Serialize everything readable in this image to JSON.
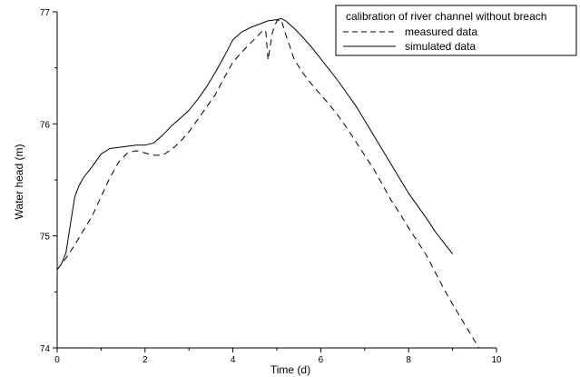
{
  "chart_data": {
    "type": "line",
    "title": "",
    "xlabel": "Time (d)",
    "ylabel": "Water head (m)",
    "xlim": [
      0,
      10
    ],
    "ylim": [
      74,
      77
    ],
    "xticks": [
      0,
      2,
      4,
      6,
      8,
      10
    ],
    "yticks": [
      74,
      75,
      76,
      77
    ],
    "grid": false,
    "legend": {
      "title": "calibration of river channel without breach",
      "placement": "top-right",
      "entries": [
        "measured data",
        "simulated data"
      ]
    },
    "series": [
      {
        "name": "measured data",
        "style": "dashed",
        "color": "#000000",
        "x": [
          0,
          0.1,
          0.2,
          0.4,
          0.6,
          0.8,
          1.0,
          1.2,
          1.4,
          1.6,
          1.8,
          2.0,
          2.2,
          2.4,
          2.6,
          2.8,
          3.0,
          3.2,
          3.4,
          3.6,
          3.8,
          4.0,
          4.2,
          4.4,
          4.5,
          4.6,
          4.7,
          4.75,
          4.8,
          4.9,
          5.0,
          5.1,
          5.2,
          5.4,
          5.6,
          5.8,
          6.0,
          6.2,
          6.4,
          6.6,
          6.8,
          7.0,
          7.2,
          7.4,
          7.6,
          7.8,
          8.0,
          8.2,
          8.4,
          8.6,
          8.8,
          9.0,
          9.2,
          9.4,
          9.6
        ],
        "y": [
          74.7,
          74.75,
          74.8,
          74.92,
          75.05,
          75.18,
          75.35,
          75.52,
          75.66,
          75.74,
          75.76,
          75.74,
          75.72,
          75.72,
          75.77,
          75.84,
          75.93,
          76.04,
          76.15,
          76.26,
          76.41,
          76.55,
          76.64,
          76.72,
          76.76,
          76.8,
          76.84,
          76.82,
          76.57,
          76.82,
          76.92,
          76.93,
          76.8,
          76.57,
          76.45,
          76.35,
          76.26,
          76.17,
          76.07,
          75.96,
          75.84,
          75.72,
          75.6,
          75.46,
          75.32,
          75.2,
          75.07,
          74.95,
          74.83,
          74.68,
          74.53,
          74.39,
          74.26,
          74.13,
          74.0
        ]
      },
      {
        "name": "simulated data",
        "style": "solid",
        "color": "#000000",
        "x": [
          0,
          0.1,
          0.2,
          0.3,
          0.4,
          0.5,
          0.6,
          0.8,
          1.0,
          1.2,
          1.4,
          1.6,
          1.8,
          2.0,
          2.2,
          2.4,
          2.6,
          2.8,
          3.0,
          3.2,
          3.4,
          3.6,
          3.8,
          4.0,
          4.2,
          4.4,
          4.6,
          4.8,
          5.0,
          5.1,
          5.2,
          5.4,
          5.6,
          5.8,
          6.0,
          6.2,
          6.4,
          6.6,
          6.8,
          7.0,
          7.2,
          7.4,
          7.6,
          7.8,
          8.0,
          8.2,
          8.4,
          8.6,
          8.8,
          9.0
        ],
        "y": [
          74.7,
          74.75,
          74.85,
          75.1,
          75.35,
          75.45,
          75.52,
          75.62,
          75.73,
          75.78,
          75.79,
          75.8,
          75.81,
          75.81,
          75.83,
          75.9,
          75.98,
          76.05,
          76.12,
          76.22,
          76.33,
          76.46,
          76.6,
          76.75,
          76.82,
          76.86,
          76.89,
          76.92,
          76.93,
          76.94,
          76.92,
          76.85,
          76.77,
          76.68,
          76.58,
          76.48,
          76.38,
          76.27,
          76.16,
          76.03,
          75.9,
          75.77,
          75.64,
          75.51,
          75.38,
          75.27,
          75.16,
          75.04,
          74.94,
          74.84
        ]
      }
    ]
  }
}
